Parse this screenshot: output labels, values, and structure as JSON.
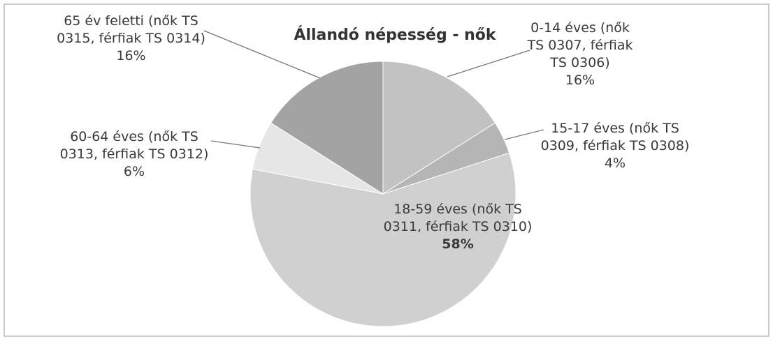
{
  "chart_data": {
    "type": "pie",
    "title": "Állandó népesség - nők",
    "categories": [
      "0-14 éves (nők TS 0307, férfiak TS 0306)",
      "15-17 éves (nők TS 0309, férfiak TS 0308)",
      "18-59 éves (nők TS 0311, férfiak TS 0310)",
      "60-64 éves (nők TS 0313, férfiak TS 0312)",
      "65 év feletti (nők TS 0315, férfiak TS 0314)"
    ],
    "values": [
      16,
      4,
      58,
      6,
      16
    ],
    "value_labels": [
      "16%",
      "4%",
      "58%",
      "6%",
      "16%"
    ],
    "colors": [
      "#c2c2c2",
      "#b5b5b5",
      "#d0d0d0",
      "#e6e6e6",
      "#a3a3a3"
    ]
  }
}
